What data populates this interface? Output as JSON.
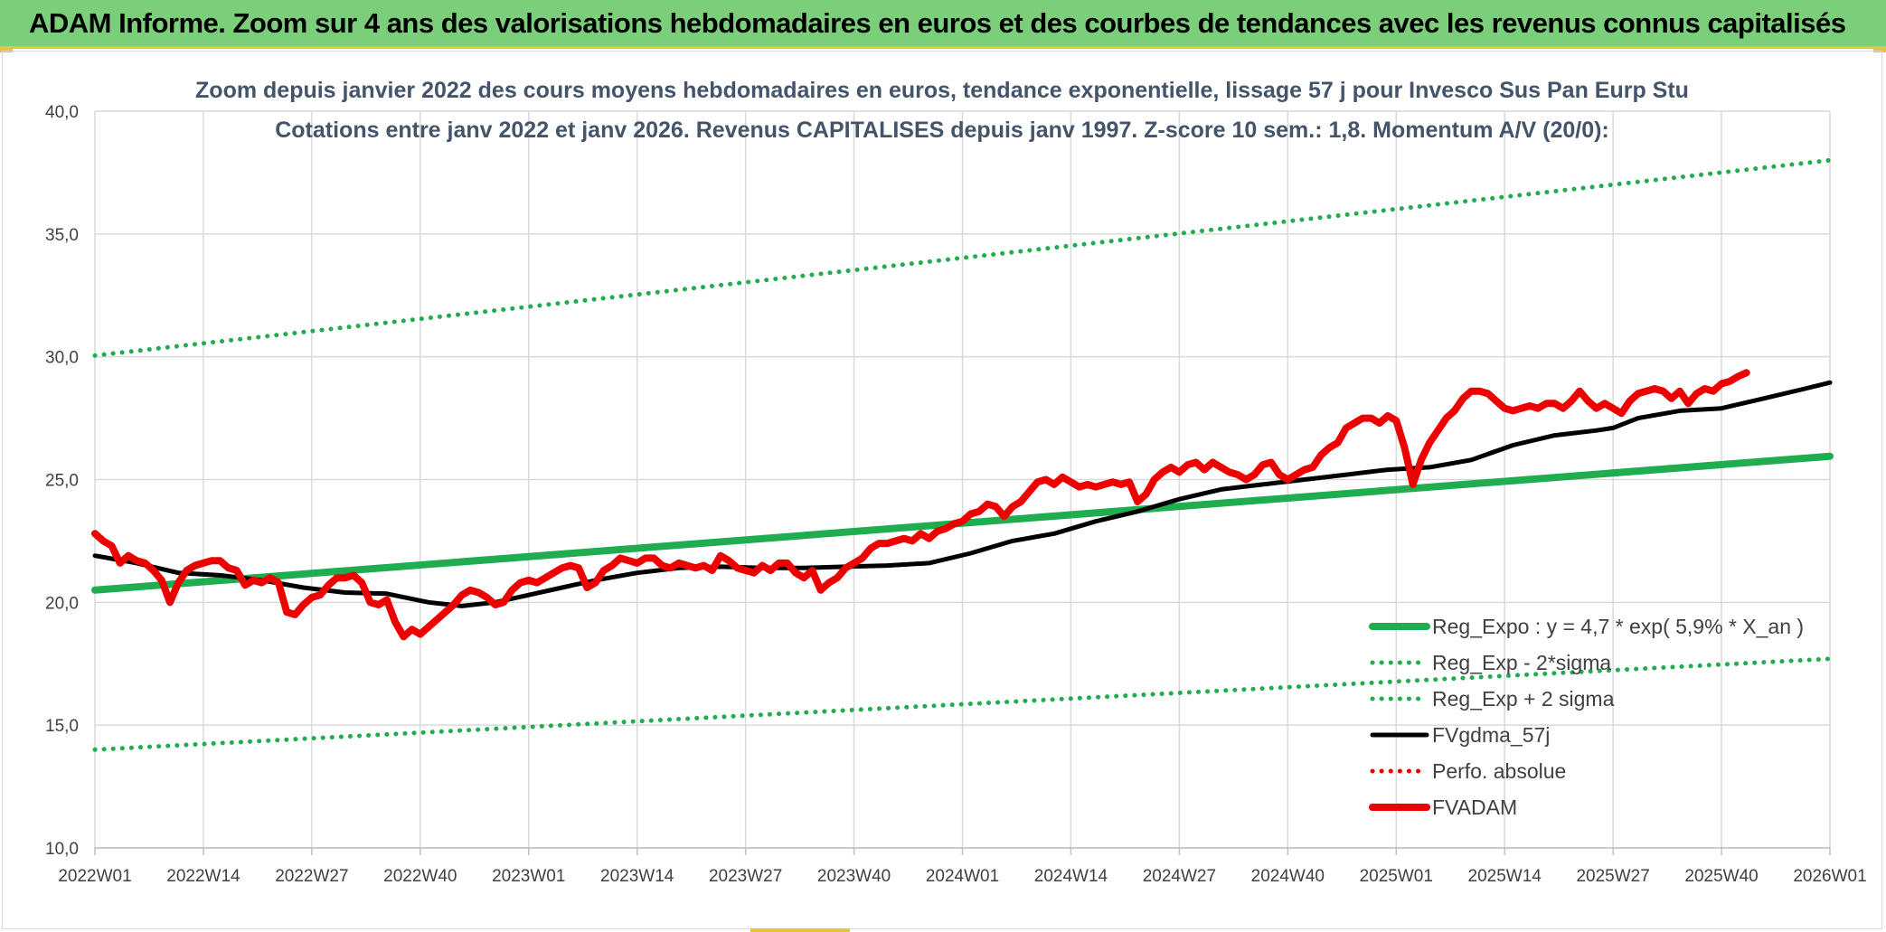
{
  "header": {
    "title": "ADAM Informe. Zoom sur 4 ans des valorisations hebdomadaires en euros et des courbes de tendances avec les revenus connus capitalisés"
  },
  "colors": {
    "banner": "#7ccf7a",
    "accent": "#e3c53a",
    "reg_expo": "#1fad4f",
    "fvgdma": "#000000",
    "fvadam": "#ee0000",
    "perfo": "#ee0000",
    "grid": "#d9d9d9",
    "title_text": "#44546a"
  },
  "chart_data": {
    "type": "line",
    "title": "Zoom depuis janvier 2022 des cours moyens hebdomadaires en euros, tendance exponentielle, lissage 57 j pour Invesco Sus Pan Eurp Stu",
    "subtitle": "Cotations entre janv 2022 et janv 2026. Revenus CAPITALISES depuis janv 1997. Z-score 10 sem.: 1,8. Momentum A/V (20/0):",
    "xlabel": "",
    "ylabel": "",
    "ylim": [
      10,
      40
    ],
    "y_ticks": [
      "10,0",
      "15,0",
      "20,0",
      "25,0",
      "30,0",
      "35,0",
      "40,0"
    ],
    "x_ticks": [
      "2022W01",
      "2022W14",
      "2022W27",
      "2022W40",
      "2023W01",
      "2023W14",
      "2023W27",
      "2023W40",
      "2024W01",
      "2024W14",
      "2024W27",
      "2024W40",
      "2025W01",
      "2025W14",
      "2025W27",
      "2025W40",
      "2026W01"
    ],
    "x_range_weeks": [
      0,
      208
    ],
    "grid": true,
    "legend_position": "bottom-right",
    "series": [
      {
        "name": "Reg_Expo : y = 4,7 * exp( 5,9% *  X_an )",
        "style": "solid-thick",
        "color": "#1fad4f",
        "points": [
          [
            0,
            20.5
          ],
          [
            208,
            25.95
          ]
        ]
      },
      {
        "name": "Reg_Exp - 2*sigma",
        "style": "dotted",
        "color": "#1fad4f",
        "points": [
          [
            0,
            14.0
          ],
          [
            208,
            17.7
          ]
        ]
      },
      {
        "name": "Reg_Exp + 2 sigma",
        "style": "dotted",
        "color": "#1fad4f",
        "points": [
          [
            0,
            30.05
          ],
          [
            208,
            38.0
          ]
        ]
      },
      {
        "name": "FVgdma_57j",
        "style": "solid",
        "color": "#000000",
        "points": [
          [
            0,
            21.9
          ],
          [
            5,
            21.6
          ],
          [
            10,
            21.2
          ],
          [
            15,
            21.1
          ],
          [
            20,
            20.9
          ],
          [
            25,
            20.6
          ],
          [
            30,
            20.4
          ],
          [
            35,
            20.35
          ],
          [
            40,
            20.0
          ],
          [
            44,
            19.85
          ],
          [
            48,
            20.0
          ],
          [
            52,
            20.3
          ],
          [
            56,
            20.6
          ],
          [
            60,
            20.9
          ],
          [
            65,
            21.2
          ],
          [
            70,
            21.4
          ],
          [
            75,
            21.45
          ],
          [
            80,
            21.4
          ],
          [
            85,
            21.4
          ],
          [
            90,
            21.45
          ],
          [
            95,
            21.5
          ],
          [
            100,
            21.6
          ],
          [
            105,
            22.0
          ],
          [
            110,
            22.5
          ],
          [
            115,
            22.8
          ],
          [
            120,
            23.3
          ],
          [
            125,
            23.7
          ],
          [
            130,
            24.2
          ],
          [
            135,
            24.6
          ],
          [
            140,
            24.8
          ],
          [
            145,
            25.0
          ],
          [
            150,
            25.2
          ],
          [
            155,
            25.4
          ],
          [
            160,
            25.5
          ],
          [
            165,
            25.8
          ],
          [
            170,
            26.4
          ],
          [
            175,
            26.8
          ],
          [
            180,
            27.0
          ],
          [
            182,
            27.1
          ],
          [
            185,
            27.5
          ],
          [
            190,
            27.8
          ],
          [
            195,
            27.9
          ],
          [
            200,
            28.3
          ],
          [
            205,
            28.7
          ],
          [
            208,
            28.95
          ]
        ]
      },
      {
        "name": "Perfo. absolue",
        "style": "dotted",
        "color": "#ee0000",
        "points": []
      },
      {
        "name": "FVADAM",
        "style": "solid-thick",
        "color": "#ee0000",
        "points": [
          [
            0,
            22.8
          ],
          [
            1,
            22.5
          ],
          [
            2,
            22.3
          ],
          [
            3,
            21.6
          ],
          [
            4,
            21.9
          ],
          [
            5,
            21.7
          ],
          [
            6,
            21.6
          ],
          [
            7,
            21.3
          ],
          [
            8,
            20.9
          ],
          [
            9,
            20.0
          ],
          [
            10,
            20.8
          ],
          [
            11,
            21.3
          ],
          [
            12,
            21.5
          ],
          [
            13,
            21.6
          ],
          [
            14,
            21.7
          ],
          [
            15,
            21.7
          ],
          [
            16,
            21.4
          ],
          [
            17,
            21.3
          ],
          [
            18,
            20.7
          ],
          [
            19,
            20.9
          ],
          [
            20,
            20.8
          ],
          [
            21,
            21.0
          ],
          [
            22,
            20.8
          ],
          [
            23,
            19.6
          ],
          [
            24,
            19.5
          ],
          [
            25,
            19.9
          ],
          [
            26,
            20.2
          ],
          [
            27,
            20.3
          ],
          [
            28,
            20.7
          ],
          [
            29,
            21.0
          ],
          [
            30,
            21.0
          ],
          [
            31,
            21.1
          ],
          [
            32,
            20.8
          ],
          [
            33,
            20.0
          ],
          [
            34,
            19.9
          ],
          [
            35,
            20.1
          ],
          [
            36,
            19.2
          ],
          [
            37,
            18.6
          ],
          [
            38,
            18.9
          ],
          [
            39,
            18.7
          ],
          [
            40,
            19.0
          ],
          [
            41,
            19.3
          ],
          [
            42,
            19.6
          ],
          [
            43,
            19.9
          ],
          [
            44,
            20.3
          ],
          [
            45,
            20.5
          ],
          [
            46,
            20.4
          ],
          [
            47,
            20.2
          ],
          [
            48,
            19.9
          ],
          [
            49,
            20.0
          ],
          [
            50,
            20.5
          ],
          [
            51,
            20.8
          ],
          [
            52,
            20.9
          ],
          [
            53,
            20.8
          ],
          [
            54,
            21.0
          ],
          [
            55,
            21.2
          ],
          [
            56,
            21.4
          ],
          [
            57,
            21.5
          ],
          [
            58,
            21.4
          ],
          [
            59,
            20.6
          ],
          [
            60,
            20.8
          ],
          [
            61,
            21.3
          ],
          [
            62,
            21.5
          ],
          [
            63,
            21.8
          ],
          [
            64,
            21.7
          ],
          [
            65,
            21.6
          ],
          [
            66,
            21.8
          ],
          [
            67,
            21.8
          ],
          [
            68,
            21.5
          ],
          [
            69,
            21.4
          ],
          [
            70,
            21.6
          ],
          [
            71,
            21.5
          ],
          [
            72,
            21.4
          ],
          [
            73,
            21.5
          ],
          [
            74,
            21.3
          ],
          [
            75,
            21.9
          ],
          [
            76,
            21.7
          ],
          [
            77,
            21.4
          ],
          [
            78,
            21.3
          ],
          [
            79,
            21.2
          ],
          [
            80,
            21.5
          ],
          [
            81,
            21.3
          ],
          [
            82,
            21.6
          ],
          [
            83,
            21.6
          ],
          [
            84,
            21.2
          ],
          [
            85,
            21.0
          ],
          [
            86,
            21.3
          ],
          [
            87,
            20.5
          ],
          [
            88,
            20.8
          ],
          [
            89,
            21.0
          ],
          [
            90,
            21.4
          ],
          [
            91,
            21.6
          ],
          [
            92,
            21.8
          ],
          [
            93,
            22.2
          ],
          [
            94,
            22.4
          ],
          [
            95,
            22.4
          ],
          [
            96,
            22.5
          ],
          [
            97,
            22.6
          ],
          [
            98,
            22.5
          ],
          [
            99,
            22.8
          ],
          [
            100,
            22.6
          ],
          [
            101,
            22.9
          ],
          [
            102,
            23.0
          ],
          [
            103,
            23.2
          ],
          [
            104,
            23.3
          ],
          [
            105,
            23.6
          ],
          [
            106,
            23.7
          ],
          [
            107,
            24.0
          ],
          [
            108,
            23.9
          ],
          [
            109,
            23.5
          ],
          [
            110,
            23.9
          ],
          [
            111,
            24.1
          ],
          [
            112,
            24.5
          ],
          [
            113,
            24.9
          ],
          [
            114,
            25.0
          ],
          [
            115,
            24.8
          ],
          [
            116,
            25.1
          ],
          [
            117,
            24.9
          ],
          [
            118,
            24.7
          ],
          [
            119,
            24.8
          ],
          [
            120,
            24.7
          ],
          [
            121,
            24.8
          ],
          [
            122,
            24.9
          ],
          [
            123,
            24.8
          ],
          [
            124,
            24.9
          ],
          [
            125,
            24.1
          ],
          [
            126,
            24.4
          ],
          [
            127,
            25.0
          ],
          [
            128,
            25.3
          ],
          [
            129,
            25.5
          ],
          [
            130,
            25.3
          ],
          [
            131,
            25.6
          ],
          [
            132,
            25.7
          ],
          [
            133,
            25.4
          ],
          [
            134,
            25.7
          ],
          [
            135,
            25.5
          ],
          [
            136,
            25.3
          ],
          [
            137,
            25.2
          ],
          [
            138,
            25.0
          ],
          [
            139,
            25.2
          ],
          [
            140,
            25.6
          ],
          [
            141,
            25.7
          ],
          [
            142,
            25.2
          ],
          [
            143,
            25.0
          ],
          [
            144,
            25.2
          ],
          [
            145,
            25.4
          ],
          [
            146,
            25.5
          ],
          [
            147,
            26.0
          ],
          [
            148,
            26.3
          ],
          [
            149,
            26.5
          ],
          [
            150,
            27.1
          ],
          [
            151,
            27.3
          ],
          [
            152,
            27.5
          ],
          [
            153,
            27.5
          ],
          [
            154,
            27.3
          ],
          [
            155,
            27.6
          ],
          [
            156,
            27.4
          ],
          [
            157,
            26.3
          ],
          [
            158,
            24.8
          ],
          [
            159,
            25.8
          ],
          [
            160,
            26.5
          ],
          [
            161,
            27.0
          ],
          [
            162,
            27.5
          ],
          [
            163,
            27.8
          ],
          [
            164,
            28.3
          ],
          [
            165,
            28.6
          ],
          [
            166,
            28.6
          ],
          [
            167,
            28.5
          ],
          [
            168,
            28.2
          ],
          [
            169,
            27.9
          ],
          [
            170,
            27.8
          ],
          [
            171,
            27.9
          ],
          [
            172,
            28.0
          ],
          [
            173,
            27.9
          ],
          [
            174,
            28.1
          ],
          [
            175,
            28.1
          ],
          [
            176,
            27.9
          ],
          [
            177,
            28.2
          ],
          [
            178,
            28.6
          ],
          [
            179,
            28.2
          ],
          [
            180,
            27.9
          ],
          [
            181,
            28.1
          ],
          [
            182,
            27.9
          ],
          [
            183,
            27.7
          ],
          [
            184,
            28.2
          ],
          [
            185,
            28.5
          ],
          [
            186,
            28.6
          ],
          [
            187,
            28.7
          ],
          [
            188,
            28.6
          ],
          [
            189,
            28.3
          ],
          [
            190,
            28.6
          ],
          [
            191,
            28.1
          ],
          [
            192,
            28.5
          ],
          [
            193,
            28.7
          ],
          [
            194,
            28.6
          ],
          [
            195,
            28.9
          ],
          [
            196,
            29.0
          ],
          [
            197,
            29.2
          ],
          [
            198,
            29.35
          ]
        ]
      }
    ]
  }
}
